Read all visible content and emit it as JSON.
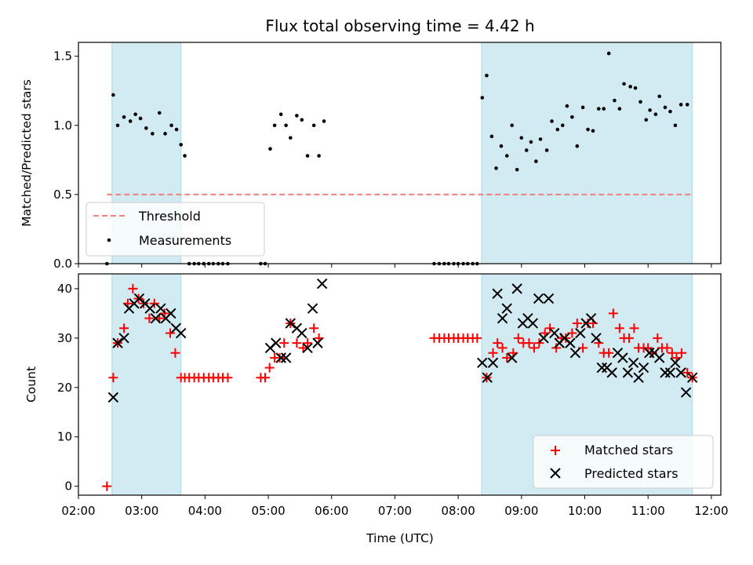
{
  "chart_data": [
    {
      "type": "scatter",
      "title": "Flux total observing time = 4.42 h",
      "xlabel": "",
      "ylabel": "Matched/Predicted stars",
      "xlim": [
        2.0,
        12.15
      ],
      "ylim": [
        0.0,
        1.6
      ],
      "y_ticks": [
        0.0,
        0.5,
        1.0,
        1.5
      ],
      "y_tick_labels": [
        "0.0",
        "0.5",
        "1.0",
        "1.5"
      ],
      "grid": false,
      "legend_position": "bottom-left",
      "shaded_intervals": [
        [
          2.53,
          3.62
        ],
        [
          8.37,
          11.7
        ]
      ],
      "shade_color": "#add8e6",
      "threshold": {
        "name": "Threshold",
        "value": 0.5,
        "x_range": [
          2.45,
          11.7
        ],
        "color": "#f08080"
      },
      "series": [
        {
          "name": "Measurements",
          "color": "#000000",
          "x": [
            2.45,
            2.55,
            2.62,
            2.72,
            2.82,
            2.9,
            2.98,
            3.07,
            3.17,
            3.28,
            3.37,
            3.47,
            3.55,
            3.62,
            3.68,
            3.75,
            3.83,
            3.9,
            3.98,
            4.06,
            4.13,
            4.21,
            4.28,
            4.36,
            4.88,
            4.95,
            5.03,
            5.1,
            5.2,
            5.28,
            5.35,
            5.45,
            5.53,
            5.62,
            5.72,
            5.8,
            5.88,
            7.62,
            7.7,
            7.78,
            7.85,
            7.93,
            8.0,
            8.08,
            8.15,
            8.23,
            8.3,
            8.38,
            8.45,
            8.53,
            8.6,
            8.68,
            8.77,
            8.85,
            8.93,
            9.0,
            9.08,
            9.15,
            9.23,
            9.3,
            9.4,
            9.48,
            9.57,
            9.65,
            9.72,
            9.8,
            9.88,
            9.97,
            10.05,
            10.13,
            10.22,
            10.3,
            10.38,
            10.47,
            10.55,
            10.62,
            10.72,
            10.8,
            10.88,
            10.97,
            11.03,
            11.12,
            11.18,
            11.27,
            11.35,
            11.43,
            11.52,
            11.62
          ],
          "y": [
            0.0,
            1.22,
            1.0,
            1.06,
            1.03,
            1.08,
            1.05,
            0.98,
            0.94,
            1.09,
            0.94,
            1.0,
            0.97,
            0.86,
            0.78,
            0.0,
            0.0,
            0.0,
            0.0,
            0.0,
            0.0,
            0.0,
            0.0,
            0.0,
            0.0,
            0.0,
            0.83,
            1.0,
            1.08,
            1.0,
            0.91,
            1.07,
            1.04,
            0.78,
            1.0,
            0.78,
            1.03,
            0.0,
            0.0,
            0.0,
            0.0,
            0.0,
            0.0,
            0.0,
            0.0,
            0.0,
            0.0,
            1.2,
            1.36,
            0.92,
            0.69,
            0.85,
            0.78,
            1.0,
            0.68,
            0.91,
            0.82,
            0.88,
            0.74,
            0.9,
            0.82,
            1.03,
            0.97,
            1.0,
            1.14,
            1.06,
            0.85,
            1.13,
            0.97,
            0.96,
            1.12,
            1.12,
            1.52,
            1.18,
            1.12,
            1.3,
            1.28,
            1.27,
            1.17,
            1.04,
            1.11,
            1.08,
            1.21,
            1.13,
            1.1,
            1.0,
            1.15,
            1.15
          ]
        }
      ]
    },
    {
      "type": "scatter",
      "title": "",
      "xlabel": "Time (UTC)",
      "ylabel": "Count",
      "xlim": [
        2.0,
        12.15
      ],
      "ylim": [
        -1.8,
        43.0
      ],
      "x_ticks": [
        2,
        3,
        4,
        5,
        6,
        7,
        8,
        9,
        10,
        11,
        12
      ],
      "x_tick_labels": [
        "02:00",
        "03:00",
        "04:00",
        "05:00",
        "06:00",
        "07:00",
        "08:00",
        "09:00",
        "10:00",
        "11:00",
        "12:00"
      ],
      "y_ticks": [
        0,
        10,
        20,
        30,
        40
      ],
      "y_tick_labels": [
        "0",
        "10",
        "20",
        "30",
        "40"
      ],
      "grid": false,
      "legend_position": "bottom-right",
      "shaded_intervals": [
        [
          2.53,
          3.62
        ],
        [
          8.37,
          11.7
        ]
      ],
      "shade_color": "#add8e6",
      "series": [
        {
          "name": "Matched stars",
          "marker": "plus",
          "color": "#ff0000",
          "x": [
            2.45,
            2.55,
            2.62,
            2.72,
            2.78,
            2.86,
            2.95,
            3.03,
            3.12,
            3.2,
            3.28,
            3.36,
            3.45,
            3.53,
            3.62,
            3.68,
            3.75,
            3.83,
            3.9,
            3.98,
            4.06,
            4.13,
            4.21,
            4.28,
            4.36,
            4.88,
            4.95,
            5.02,
            5.1,
            5.18,
            5.25,
            5.35,
            5.45,
            5.55,
            5.62,
            5.72,
            5.8,
            7.62,
            7.7,
            7.78,
            7.85,
            7.93,
            8.0,
            8.08,
            8.15,
            8.23,
            8.3,
            8.45,
            8.55,
            8.62,
            8.7,
            8.77,
            8.87,
            8.95,
            9.03,
            9.12,
            9.2,
            9.28,
            9.37,
            9.45,
            9.55,
            9.63,
            9.7,
            9.8,
            9.88,
            9.97,
            10.05,
            10.13,
            10.22,
            10.3,
            10.38,
            10.45,
            10.55,
            10.62,
            10.7,
            10.78,
            10.85,
            10.93,
            11.0,
            11.07,
            11.15,
            11.22,
            11.3,
            11.38,
            11.45,
            11.53,
            11.62,
            11.7
          ],
          "y": [
            0,
            22,
            29,
            32,
            37,
            40,
            38,
            37,
            34,
            37,
            34,
            35,
            31,
            27,
            22,
            22,
            22,
            22,
            22,
            22,
            22,
            22,
            22,
            22,
            22,
            22,
            22,
            24,
            26,
            26,
            29,
            33,
            29,
            28,
            29,
            32,
            30,
            30,
            30,
            30,
            30,
            30,
            30,
            30,
            30,
            30,
            30,
            22,
            27,
            29,
            28,
            26,
            27,
            30,
            29,
            29,
            28,
            29,
            31,
            32,
            28,
            30,
            30,
            31,
            33,
            28,
            33,
            33,
            29,
            27,
            27,
            35,
            32,
            30,
            30,
            32,
            28,
            28,
            28,
            27,
            30,
            28,
            28,
            27,
            26,
            27,
            23,
            22
          ]
        },
        {
          "name": "Predicted stars",
          "marker": "x",
          "color": "#000000",
          "x": [
            2.55,
            2.62,
            2.72,
            2.8,
            2.88,
            2.96,
            3.05,
            3.13,
            3.22,
            3.3,
            3.38,
            3.46,
            3.54,
            3.62,
            5.03,
            5.12,
            5.2,
            5.28,
            5.35,
            5.45,
            5.53,
            5.62,
            5.7,
            5.78,
            5.85,
            8.38,
            8.46,
            8.55,
            8.62,
            8.7,
            8.77,
            8.85,
            8.93,
            9.02,
            9.1,
            9.18,
            9.27,
            9.35,
            9.43,
            9.52,
            9.6,
            9.68,
            9.77,
            9.85,
            9.93,
            10.02,
            10.1,
            10.18,
            10.27,
            10.35,
            10.43,
            10.52,
            10.6,
            10.68,
            10.77,
            10.85,
            10.93,
            11.02,
            11.1,
            11.18,
            11.27,
            11.35,
            11.43,
            11.52,
            11.6,
            11.7
          ],
          "y": [
            18,
            29,
            30,
            36,
            37,
            38,
            37,
            36,
            34,
            36,
            34,
            35,
            32,
            31,
            28,
            29,
            26,
            26,
            33,
            32,
            31,
            28,
            36,
            29,
            41,
            25,
            22,
            25,
            39,
            34,
            36,
            26,
            40,
            33,
            34,
            33,
            38,
            30,
            38,
            31,
            29,
            30,
            29,
            27,
            31,
            33,
            34,
            30,
            24,
            24,
            23,
            27,
            26,
            23,
            25,
            22,
            24,
            27,
            27,
            26,
            23,
            23,
            25,
            23,
            19,
            22
          ]
        }
      ]
    }
  ]
}
